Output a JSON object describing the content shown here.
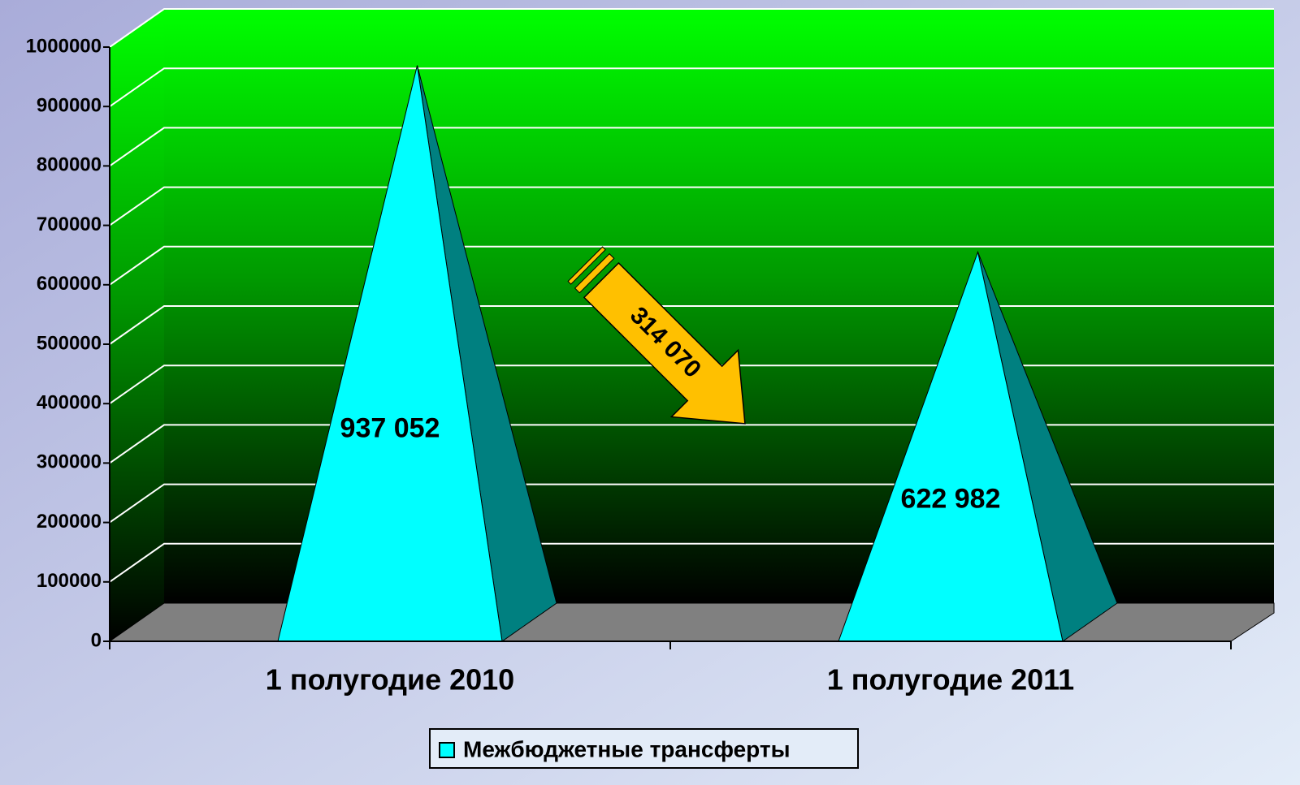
{
  "chart_data": {
    "type": "pyramid",
    "categories": [
      "1 полугодие 2010",
      "1 полугодие 2011"
    ],
    "series": [
      {
        "name": "Межбюджетные трансферты",
        "color": "#00ffff",
        "values": [
          937052,
          622982
        ],
        "value_labels": [
          "937 052",
          "622 982"
        ]
      }
    ],
    "annotation": "314 070",
    "ylim": [
      0,
      1000000
    ],
    "yticks": [
      0,
      100000,
      200000,
      300000,
      400000,
      500000,
      600000,
      700000,
      800000,
      900000,
      1000000
    ],
    "grid": true,
    "legend": "bottom"
  }
}
